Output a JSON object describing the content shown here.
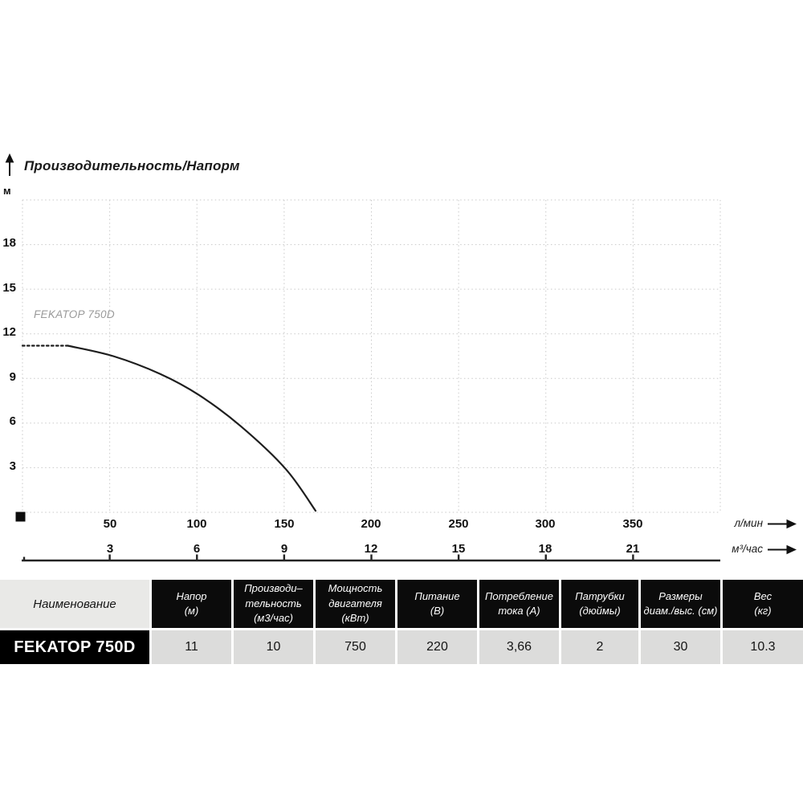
{
  "chart_data": {
    "type": "line",
    "title": "Производительность/Напорм",
    "ylabel": "м",
    "ylim": [
      0,
      21
    ],
    "y_ticks": [
      3,
      6,
      9,
      12,
      15,
      18
    ],
    "xlim_l_min": [
      0,
      400
    ],
    "x_ticks_l_min": [
      50,
      100,
      150,
      200,
      250,
      300,
      350
    ],
    "x_ticks_m3_h": [
      3,
      6,
      9,
      12,
      15,
      18,
      21
    ],
    "x_unit_primary": "л/мин",
    "x_unit_secondary": "м³/час",
    "grid": "dotted",
    "legend": "FEKATOP 750D",
    "legend_position": "inside-top-left",
    "series": [
      {
        "name": "FEKATOP 750D",
        "x_l_min": [
          0,
          26,
          52,
          79,
          101,
          125,
          151,
          168
        ],
        "head_m": [
          11.2,
          11.2,
          10.5,
          9.3,
          7.9,
          5.8,
          2.9,
          0.1
        ],
        "dashed_until_x": 26
      }
    ]
  },
  "table": {
    "name_header": "Наименование",
    "columns": [
      {
        "lines": [
          "Напор",
          "(м)"
        ]
      },
      {
        "lines": [
          "Производи–",
          "тельность",
          "(м3/час)"
        ]
      },
      {
        "lines": [
          "Мощность",
          "двигателя",
          "(кВт)"
        ]
      },
      {
        "lines": [
          "Питание",
          "(В)"
        ]
      },
      {
        "lines": [
          "Потребление",
          "тока (А)"
        ]
      },
      {
        "lines": [
          "Патрубки",
          "(дюймы)"
        ]
      },
      {
        "lines": [
          "Размеры",
          "диам./выс. (см)"
        ]
      },
      {
        "lines": [
          "Вес",
          "(кг)"
        ]
      }
    ],
    "row": {
      "name": "FEKATOP 750D",
      "values": [
        "11",
        "10",
        "750",
        "220",
        "3,66",
        "2",
        "30",
        "10.3"
      ]
    }
  }
}
